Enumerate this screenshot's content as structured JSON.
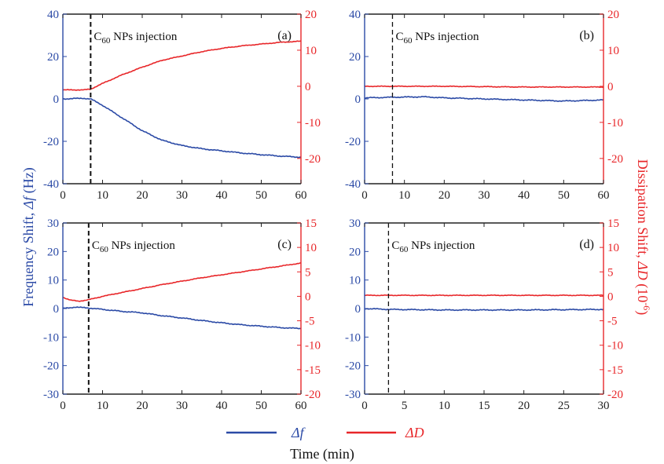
{
  "figure": {
    "ylabel_left_prefix": "Frequency Shift, ",
    "ylabel_left_symbol": "Δf",
    "ylabel_left_unit": " (Hz)",
    "ylabel_right_prefix": "Dissipation Shift, ",
    "ylabel_right_symbol": "ΔD",
    "ylabel_right_unit": " (10",
    "ylabel_right_exp": "-6",
    "ylabel_right_close": ")",
    "xlabel": "Time (min)",
    "legend": [
      {
        "label": "Δf",
        "color": "#2b4aa6"
      },
      {
        "label": "ΔD",
        "color": "#e8272a"
      }
    ],
    "colors": {
      "frequency": "#2b4aa6",
      "dissipation": "#e8272a",
      "axis": "#222222"
    }
  },
  "chart_data": [
    {
      "type": "line",
      "panel_label": "(a)",
      "annotation": {
        "prefix": "C",
        "sub": "60",
        "suffix": " NPs injection",
        "x": 7
      },
      "xlim": [
        0,
        60
      ],
      "xticks": [
        0,
        10,
        20,
        30,
        40,
        50,
        60
      ],
      "ylim_left": [
        -40,
        40
      ],
      "yticks_left": [
        -40,
        -20,
        0,
        20,
        40
      ],
      "ylim_right": [
        -27,
        20
      ],
      "yticks_right": [
        -20,
        -10,
        0,
        10,
        20
      ],
      "series": [
        {
          "name": "Δf",
          "axis": "left",
          "color": "#2b4aa6",
          "x": [
            0,
            5,
            7,
            10,
            15,
            20,
            25,
            30,
            35,
            40,
            45,
            50,
            55,
            60
          ],
          "y": [
            0,
            0.3,
            0,
            -3,
            -9,
            -15,
            -19.5,
            -22,
            -23.5,
            -24.5,
            -25.5,
            -26.3,
            -27,
            -27.5
          ]
        },
        {
          "name": "ΔD",
          "axis": "right",
          "color": "#e8272a",
          "x": [
            0,
            5,
            7,
            10,
            15,
            20,
            25,
            30,
            35,
            40,
            45,
            50,
            55,
            60
          ],
          "y": [
            -1,
            -1,
            -0.8,
            0.8,
            3.2,
            5.3,
            7.2,
            8.4,
            9.6,
            10.5,
            11.2,
            11.7,
            12.2,
            12.5
          ]
        }
      ]
    },
    {
      "type": "line",
      "panel_label": "(b)",
      "annotation": {
        "prefix": "C",
        "sub": "60",
        "suffix": " NPs injection",
        "x": 7
      },
      "xlim": [
        0,
        60
      ],
      "xticks": [
        0,
        10,
        20,
        30,
        40,
        50,
        60
      ],
      "ylim_left": [
        -40,
        40
      ],
      "yticks_left": [
        -40,
        -20,
        0,
        20,
        40
      ],
      "ylim_right": [
        -27,
        20
      ],
      "yticks_right": [
        -20,
        -10,
        0,
        10,
        20
      ],
      "series": [
        {
          "name": "Δf",
          "axis": "left",
          "color": "#2b4aa6",
          "x": [
            0,
            7,
            15,
            20,
            30,
            40,
            50,
            60
          ],
          "y": [
            0.5,
            0.8,
            1,
            0.5,
            0,
            -0.5,
            -1,
            -0.5
          ]
        },
        {
          "name": "ΔD",
          "axis": "right",
          "color": "#e8272a",
          "x": [
            0,
            7,
            20,
            40,
            60
          ],
          "y": [
            0,
            0,
            0,
            -0.2,
            -0.2
          ]
        }
      ]
    },
    {
      "type": "line",
      "panel_label": "(c)",
      "annotation": {
        "prefix": "C",
        "sub": "60",
        "suffix": " NPs injection",
        "x": 6.5
      },
      "xlim": [
        0,
        60
      ],
      "xticks": [
        0,
        10,
        20,
        30,
        40,
        50,
        60
      ],
      "ylim_left": [
        -30,
        30
      ],
      "yticks_left": [
        -30,
        -20,
        -10,
        0,
        10,
        20,
        30
      ],
      "ylim_right": [
        -20,
        15
      ],
      "yticks_right": [
        -20,
        -15,
        -10,
        -5,
        0,
        5,
        10,
        15
      ],
      "series": [
        {
          "name": "Δf",
          "axis": "left",
          "color": "#2b4aa6",
          "x": [
            0,
            3,
            6.5,
            10,
            15,
            20,
            25,
            30,
            35,
            40,
            45,
            50,
            55,
            60
          ],
          "y": [
            0,
            0.5,
            0.2,
            -0.3,
            -1,
            -1.5,
            -2.5,
            -3.3,
            -4.2,
            -5,
            -5.7,
            -6.2,
            -6.7,
            -7
          ]
        },
        {
          "name": "ΔD",
          "axis": "right",
          "color": "#e8272a",
          "x": [
            0,
            2,
            4,
            6.5,
            10,
            15,
            20,
            25,
            30,
            35,
            40,
            45,
            50,
            55,
            60
          ],
          "y": [
            -0.2,
            -0.8,
            -1,
            -0.7,
            0,
            0.8,
            1.6,
            2.4,
            3.1,
            3.8,
            4.4,
            5,
            5.6,
            6.2,
            6.8
          ]
        }
      ]
    },
    {
      "type": "line",
      "panel_label": "(d)",
      "annotation": {
        "prefix": "C",
        "sub": "60",
        "suffix": " NPs injection",
        "x": 3
      },
      "xlim": [
        0,
        30
      ],
      "xticks": [
        0,
        5,
        10,
        15,
        20,
        25,
        30
      ],
      "ylim_left": [
        -30,
        30
      ],
      "yticks_left": [
        -30,
        -20,
        -10,
        0,
        10,
        20,
        30
      ],
      "ylim_right": [
        -20,
        15
      ],
      "yticks_right": [
        -20,
        -15,
        -10,
        -5,
        0,
        5,
        10,
        15
      ],
      "series": [
        {
          "name": "Δf",
          "axis": "left",
          "color": "#2b4aa6",
          "x": [
            0,
            3,
            10,
            20,
            30
          ],
          "y": [
            0,
            -0.3,
            -0.5,
            -0.5,
            -0.3
          ]
        },
        {
          "name": "ΔD",
          "axis": "right",
          "color": "#e8272a",
          "x": [
            0,
            3,
            10,
            20,
            30
          ],
          "y": [
            0.2,
            0.2,
            0.2,
            0.2,
            0.2
          ]
        }
      ]
    }
  ]
}
